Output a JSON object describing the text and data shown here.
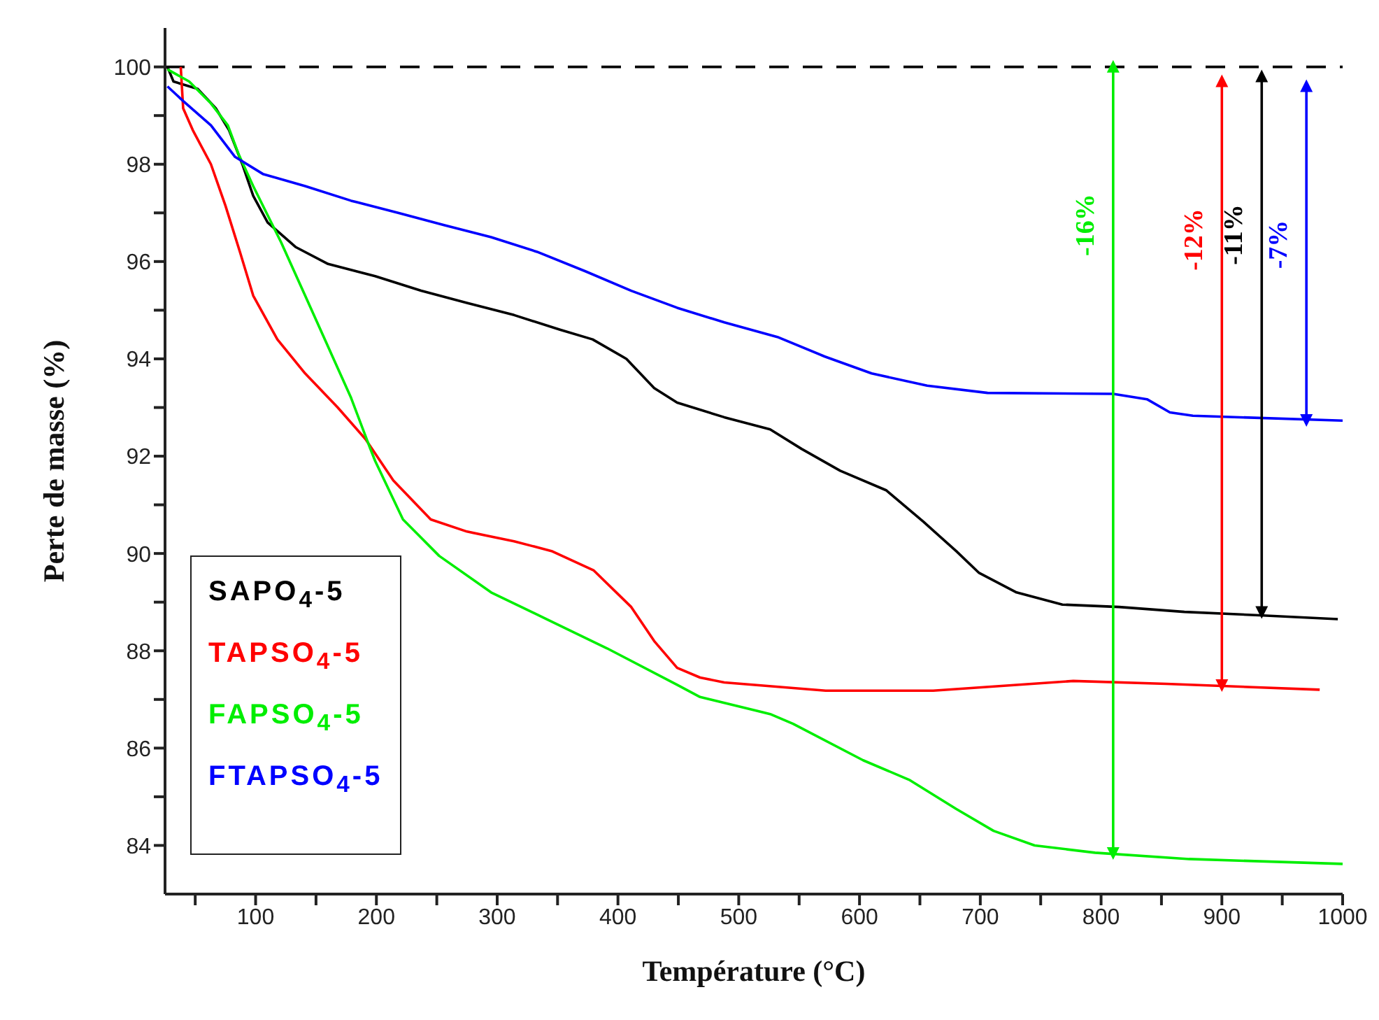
{
  "chart_data": {
    "type": "line",
    "xlabel": "Température (°C)",
    "ylabel": "Perte de masse (%)",
    "xlim": [
      25,
      1000
    ],
    "ylim": [
      83,
      100.8
    ],
    "xticks": [
      {
        "value": 50,
        "label": null
      },
      100,
      {
        "value": 150,
        "label": null
      },
      200,
      {
        "value": 250,
        "label": null
      },
      300,
      {
        "value": 350,
        "label": null
      },
      400,
      {
        "value": 450,
        "label": null
      },
      500,
      {
        "value": 550,
        "label": null
      },
      600,
      {
        "value": 650,
        "label": null
      },
      700,
      {
        "value": 750,
        "label": null
      },
      800,
      {
        "value": 850,
        "label": null
      },
      900,
      {
        "value": 950,
        "label": null
      },
      1000
    ],
    "yticks": [
      84,
      {
        "value": 85,
        "label": null
      },
      86,
      {
        "value": 87,
        "label": null
      },
      88,
      {
        "value": 89,
        "label": null
      },
      90,
      {
        "value": 91,
        "label": null
      },
      92,
      {
        "value": 93,
        "label": null
      },
      94,
      {
        "value": 95,
        "label": null
      },
      96,
      {
        "value": 97,
        "label": null
      },
      98,
      {
        "value": 99,
        "label": null
      },
      100
    ],
    "grid": false,
    "legend": "bottom left",
    "marker": "none",
    "line_style": "solid",
    "ref_lines": [
      {
        "axis": "y",
        "value": 100,
        "color": "#000000",
        "line_style": "dashed"
      }
    ],
    "annotations": [
      "-11%",
      "-12%",
      "-16%",
      "-7%"
    ],
    "series": [
      {
        "name": "SAPO$_{4}$-5",
        "color": "#000000",
        "x": [
          27,
          32,
          52,
          67,
          78,
          89,
          98,
          110,
          133,
          160,
          199,
          237,
          275,
          314,
          352,
          379,
          407,
          430,
          449,
          488,
          526,
          552,
          584,
          622,
          653,
          680,
          699,
          730,
          768,
          815,
          869,
          931,
          996
        ],
        "values": [
          100,
          99.7,
          99.55,
          99.15,
          98.7,
          98,
          97.35,
          96.8,
          96.3,
          95.95,
          95.7,
          95.4,
          95.15,
          94.9,
          94.6,
          94.4,
          94,
          93.4,
          93.1,
          92.8,
          92.55,
          92.15,
          91.7,
          91.3,
          90.65,
          90.05,
          89.6,
          89.2,
          88.95,
          88.9,
          88.8,
          88.73,
          88.65
        ]
      },
      {
        "name": "TAPSO$_{4}$-5",
        "color": "#ff0000",
        "x": [
          38,
          40,
          48,
          63,
          75,
          87,
          98,
          118,
          141,
          168,
          191,
          214,
          245,
          275,
          314,
          345,
          380,
          411,
          430,
          449,
          468,
          488,
          572,
          661,
          777,
          854,
          981
        ],
        "values": [
          100,
          99.15,
          98.7,
          98,
          97.15,
          96.2,
          95.3,
          94.4,
          93.7,
          93,
          92.35,
          91.5,
          90.7,
          90.45,
          90.25,
          90.05,
          89.65,
          88.9,
          88.2,
          87.65,
          87.45,
          87.35,
          87.18,
          87.18,
          87.38,
          87.32,
          87.2
        ]
      },
      {
        "name": "FAPSO$_{4}$-5",
        "color": "#00ee00",
        "x": [
          27,
          45,
          63,
          77,
          86,
          98,
          121,
          141,
          160,
          179,
          195,
          199,
          222,
          252,
          295,
          341,
          391,
          449,
          468,
          526,
          545,
          603,
          641,
          680,
          711,
          745,
          795,
          873,
          1000
        ],
        "values": [
          99.95,
          99.7,
          99.25,
          98.8,
          98.2,
          97.55,
          96.4,
          95.3,
          94.25,
          93.2,
          92.15,
          91.9,
          90.7,
          89.95,
          89.2,
          88.65,
          88.05,
          87.3,
          87.05,
          86.7,
          86.5,
          85.75,
          85.35,
          84.75,
          84.3,
          84,
          83.85,
          83.72,
          83.62
        ]
      },
      {
        "name": "FTAPSO$_{4}$-5",
        "color": "#0000ff",
        "x": [
          27,
          40,
          63,
          83,
          106,
          141,
          179,
          218,
          256,
          295,
          333,
          373,
          411,
          449,
          488,
          532,
          571,
          610,
          656,
          706,
          810,
          838,
          857,
          876,
          1000
        ],
        "values": [
          99.6,
          99.3,
          98.8,
          98.15,
          97.8,
          97.55,
          97.25,
          97,
          96.75,
          96.5,
          96.2,
          95.8,
          95.4,
          95.05,
          94.75,
          94.45,
          94.05,
          93.7,
          93.45,
          93.3,
          93.28,
          93.17,
          92.9,
          92.83,
          92.73
        ]
      },
      {
        "type": "line",
        "marker": "triangle",
        "color": "#000000",
        "x": [
          933,
          933
        ],
        "values": [
          99.8,
          88.8
        ]
      },
      {
        "type": "line",
        "marker": "triangle",
        "color": "#ff0000",
        "x": [
          900,
          900
        ],
        "values": [
          99.7,
          87.3
        ]
      },
      {
        "type": "line",
        "marker": "triangle",
        "color": "#00ee00",
        "x": [
          810,
          810
        ],
        "values": [
          100,
          83.85
        ]
      },
      {
        "type": "line",
        "marker": "triangle",
        "color": "#0000ff",
        "x": [
          970,
          970
        ],
        "values": [
          99.6,
          92.75
        ]
      }
    ]
  }
}
